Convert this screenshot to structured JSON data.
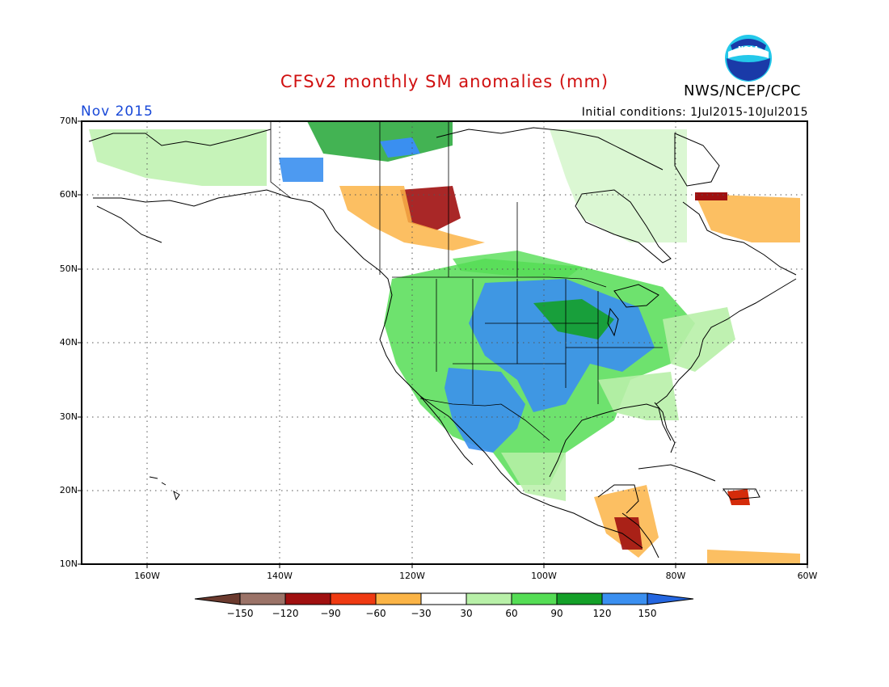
{
  "header": {
    "title": "CFSv2 monthly SM anomalies (mm)",
    "agency": "NWS/NCEP/CPC",
    "logo_text": "NOAA",
    "month": "Nov 2015",
    "initial_conditions": "Initial conditions: 1Jul2015-10Jul2015"
  },
  "axes": {
    "lat_labels": [
      "70N",
      "60N",
      "50N",
      "40N",
      "30N",
      "20N",
      "10N"
    ],
    "lon_labels": [
      "160W",
      "140W",
      "120W",
      "100W",
      "80W",
      "60W"
    ]
  },
  "colorbar": {
    "labels": [
      "−150",
      "−120",
      "−90",
      "−60",
      "−30",
      "30",
      "60",
      "90",
      "120",
      "150"
    ],
    "colors": [
      "#6b3a2e",
      "#9b7368",
      "#a01010",
      "#d42b0a",
      "#f4661c",
      "#fbb446",
      "#ffffff",
      "#b8f0a8",
      "#55dd55",
      "#14a028",
      "#3a8ff0",
      "#2466e0"
    ]
  }
}
